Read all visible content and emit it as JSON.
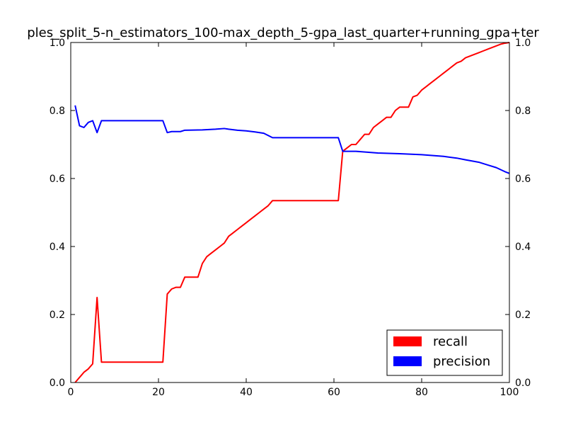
{
  "chart_data": {
    "type": "line",
    "title": "ples_split_5-n_estimators_100-max_depth_5-gpa_last_quarter+running_gpa+ter",
    "xlabel": "",
    "ylabel": "",
    "xlim": [
      0,
      100
    ],
    "ylim": [
      0,
      1
    ],
    "x_ticks": [
      "0",
      "20",
      "40",
      "60",
      "80",
      "100"
    ],
    "y_ticks": [
      "0.0",
      "0.2",
      "0.4",
      "0.6",
      "0.8",
      "1.0"
    ],
    "y2_ticks": [
      "0.0",
      "0.2",
      "0.4",
      "0.6",
      "0.8",
      "1.0"
    ],
    "grid": false,
    "legend_position": "lower-right",
    "series": [
      {
        "name": "recall",
        "color": "#ff0000",
        "points": [
          [
            1,
            0.0
          ],
          [
            2,
            0.015
          ],
          [
            3,
            0.03
          ],
          [
            4,
            0.04
          ],
          [
            5,
            0.055
          ],
          [
            6,
            0.25
          ],
          [
            7,
            0.06
          ],
          [
            10,
            0.06
          ],
          [
            15,
            0.06
          ],
          [
            20,
            0.06
          ],
          [
            21,
            0.06
          ],
          [
            22,
            0.26
          ],
          [
            23,
            0.275
          ],
          [
            24,
            0.28
          ],
          [
            25,
            0.28
          ],
          [
            26,
            0.31
          ],
          [
            27,
            0.31
          ],
          [
            28,
            0.31
          ],
          [
            29,
            0.31
          ],
          [
            30,
            0.35
          ],
          [
            31,
            0.37
          ],
          [
            32,
            0.38
          ],
          [
            33,
            0.39
          ],
          [
            34,
            0.4
          ],
          [
            35,
            0.41
          ],
          [
            36,
            0.43
          ],
          [
            37,
            0.44
          ],
          [
            38,
            0.45
          ],
          [
            39,
            0.46
          ],
          [
            40,
            0.47
          ],
          [
            41,
            0.48
          ],
          [
            42,
            0.49
          ],
          [
            43,
            0.5
          ],
          [
            44,
            0.51
          ],
          [
            45,
            0.52
          ],
          [
            46,
            0.535
          ],
          [
            50,
            0.535
          ],
          [
            55,
            0.535
          ],
          [
            60,
            0.535
          ],
          [
            61,
            0.535
          ],
          [
            62,
            0.68
          ],
          [
            63,
            0.69
          ],
          [
            64,
            0.7
          ],
          [
            65,
            0.7
          ],
          [
            66,
            0.715
          ],
          [
            67,
            0.73
          ],
          [
            68,
            0.73
          ],
          [
            69,
            0.75
          ],
          [
            70,
            0.76
          ],
          [
            71,
            0.77
          ],
          [
            72,
            0.78
          ],
          [
            73,
            0.78
          ],
          [
            74,
            0.8
          ],
          [
            75,
            0.81
          ],
          [
            76,
            0.81
          ],
          [
            77,
            0.81
          ],
          [
            78,
            0.84
          ],
          [
            79,
            0.845
          ],
          [
            80,
            0.86
          ],
          [
            81,
            0.87
          ],
          [
            82,
            0.88
          ],
          [
            83,
            0.89
          ],
          [
            84,
            0.9
          ],
          [
            85,
            0.91
          ],
          [
            86,
            0.92
          ],
          [
            87,
            0.93
          ],
          [
            88,
            0.94
          ],
          [
            89,
            0.945
          ],
          [
            90,
            0.955
          ],
          [
            91,
            0.96
          ],
          [
            92,
            0.965
          ],
          [
            93,
            0.97
          ],
          [
            94,
            0.975
          ],
          [
            95,
            0.98
          ],
          [
            96,
            0.985
          ],
          [
            97,
            0.99
          ],
          [
            98,
            0.995
          ],
          [
            99,
            0.998
          ],
          [
            100,
            1.0
          ]
        ]
      },
      {
        "name": "precision",
        "color": "#0000ff",
        "points": [
          [
            1,
            0.815
          ],
          [
            2,
            0.755
          ],
          [
            3,
            0.75
          ],
          [
            4,
            0.765
          ],
          [
            5,
            0.77
          ],
          [
            6,
            0.735
          ],
          [
            7,
            0.77
          ],
          [
            10,
            0.77
          ],
          [
            15,
            0.77
          ],
          [
            20,
            0.77
          ],
          [
            21,
            0.77
          ],
          [
            22,
            0.735
          ],
          [
            23,
            0.738
          ],
          [
            24,
            0.738
          ],
          [
            25,
            0.738
          ],
          [
            26,
            0.742
          ],
          [
            30,
            0.743
          ],
          [
            33,
            0.745
          ],
          [
            35,
            0.747
          ],
          [
            36,
            0.745
          ],
          [
            38,
            0.742
          ],
          [
            40,
            0.74
          ],
          [
            42,
            0.737
          ],
          [
            44,
            0.733
          ],
          [
            46,
            0.72
          ],
          [
            50,
            0.72
          ],
          [
            55,
            0.72
          ],
          [
            60,
            0.72
          ],
          [
            61,
            0.72
          ],
          [
            62,
            0.68
          ],
          [
            65,
            0.68
          ],
          [
            70,
            0.675
          ],
          [
            75,
            0.673
          ],
          [
            80,
            0.67
          ],
          [
            85,
            0.665
          ],
          [
            88,
            0.66
          ],
          [
            90,
            0.655
          ],
          [
            93,
            0.648
          ],
          [
            95,
            0.64
          ],
          [
            97,
            0.632
          ],
          [
            99,
            0.62
          ],
          [
            100,
            0.615
          ]
        ]
      }
    ]
  }
}
